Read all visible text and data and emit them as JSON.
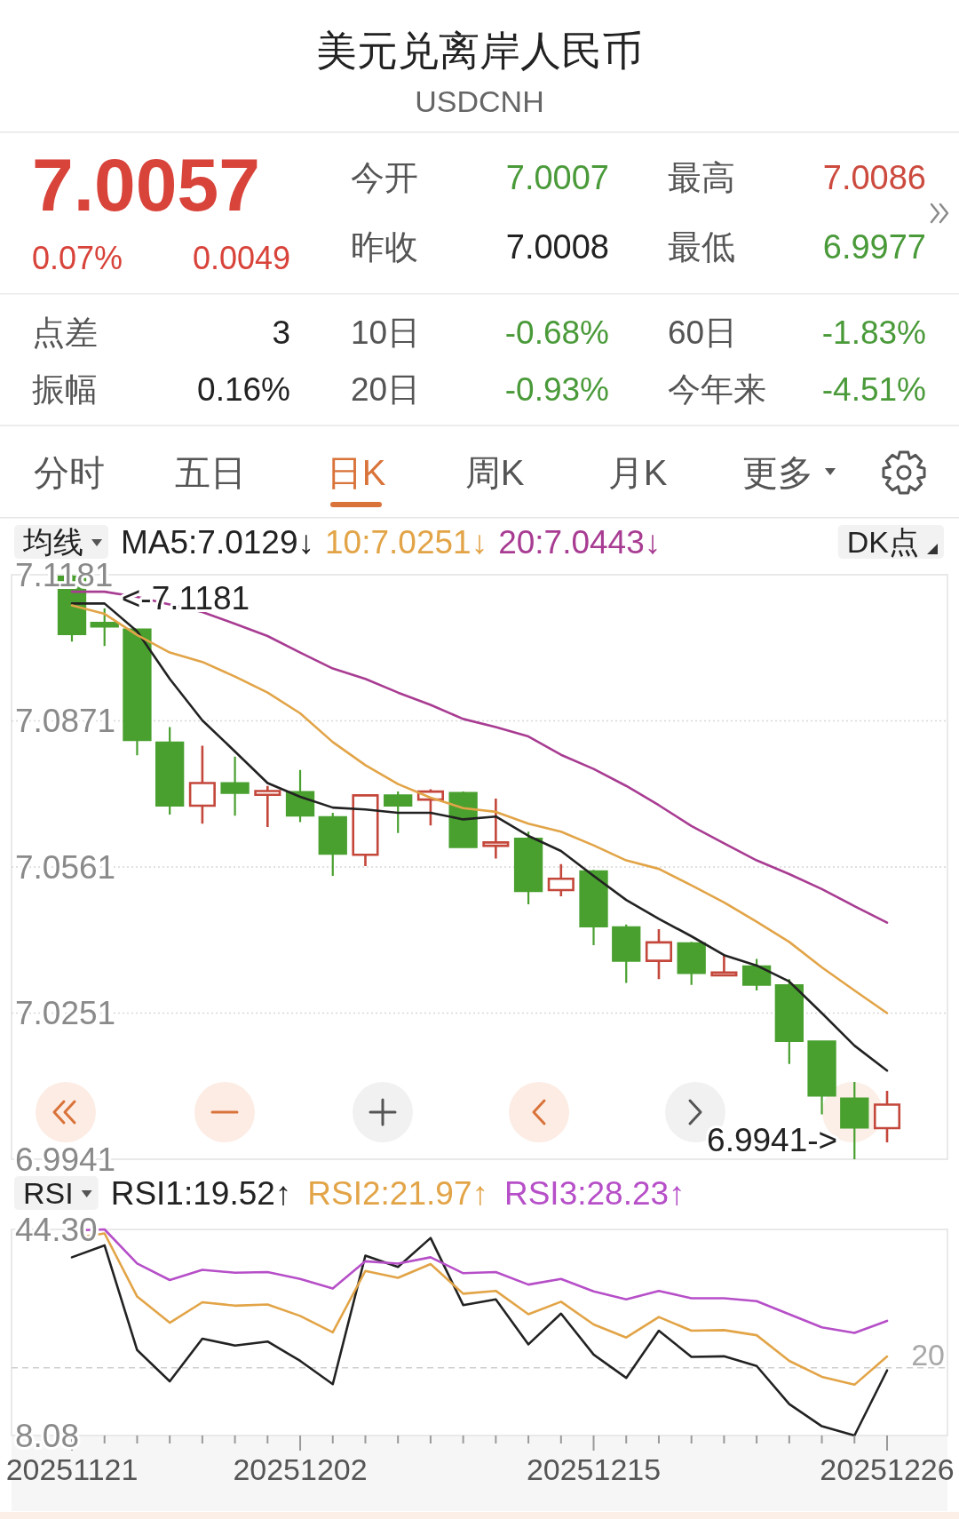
{
  "chart_data": [
    {
      "type": "other",
      "title": "美元兑离岸人民币",
      "subtitle": "USDCNH",
      "annotations": [
        "7.0057",
        "0.07%",
        "0.0049",
        "今开",
        "7.0007",
        "最高",
        "7.0086",
        "昨收",
        "7.0008",
        "最低",
        "6.9977",
        "点差",
        "3",
        "10日",
        "-0.68%",
        "60日",
        "-1.83%",
        "振幅",
        "0.16%",
        "20日",
        "-0.93%",
        "今年来",
        "-4.51%",
        "分时",
        "五日",
        "日K",
        "周K",
        "月K",
        "更多"
      ],
      "colors": [
        "#d8433a",
        "#d8433a",
        "#d8433a",
        "#555555",
        "#4a9a3a",
        "#555555",
        "#cc4a3e",
        "#555555",
        "#222222",
        "#555555",
        "#4a9a3a",
        "#555555",
        "#222222",
        "#555555",
        "#4a9a3a",
        "#555555",
        "#4a9a3a",
        "#555555",
        "#222222",
        "#555555",
        "#4a9a3a",
        "#555555",
        "#4a9a3a",
        "#555555",
        "#555555",
        "#d9733a",
        "#555555",
        "#555555",
        "#555555"
      ]
    },
    {
      "type": "candlestick",
      "categories": [
        "20251121",
        null,
        null,
        null,
        null,
        null,
        null,
        "20251202",
        null,
        null,
        null,
        null,
        null,
        null,
        null,
        null,
        "20251215",
        null,
        null,
        null,
        null,
        null,
        null,
        null,
        null,
        "20251226"
      ],
      "ohlc": [
        [
          7.1177,
          7.1181,
          7.1039,
          7.1055
        ],
        [
          7.1079,
          7.111,
          7.103,
          7.1071
        ],
        [
          7.1065,
          7.1066,
          7.0798,
          7.083
        ],
        [
          7.0825,
          7.0858,
          7.0672,
          7.0691
        ],
        [
          7.0691,
          7.0818,
          7.0653,
          7.0739
        ],
        [
          7.0739,
          7.0795,
          7.067,
          7.0718
        ],
        [
          7.0714,
          7.0733,
          7.0646,
          7.0722
        ],
        [
          7.072,
          7.0767,
          7.0656,
          7.067
        ],
        [
          7.0667,
          7.0676,
          7.0542,
          7.0589
        ],
        [
          7.0587,
          7.0713,
          7.0563,
          7.0713
        ],
        [
          7.0713,
          7.0721,
          7.0633,
          7.0691
        ],
        [
          7.0704,
          7.0726,
          7.0649,
          7.0721
        ],
        [
          7.0718,
          7.0721,
          7.0601,
          7.0603
        ],
        [
          7.0606,
          7.0706,
          7.0579,
          7.0613
        ],
        [
          7.0621,
          7.0636,
          7.0482,
          7.051
        ],
        [
          7.0512,
          7.0567,
          7.0499,
          7.0536
        ],
        [
          7.0552,
          7.0555,
          7.0395,
          7.0435
        ],
        [
          7.0433,
          7.0439,
          7.0315,
          7.0362
        ],
        [
          7.0362,
          7.0429,
          7.0323,
          7.0401
        ],
        [
          7.0399,
          7.0402,
          7.0311,
          7.0336
        ],
        [
          7.0331,
          7.0374,
          7.0329,
          7.0337
        ],
        [
          7.035,
          7.0366,
          7.0299,
          7.0311
        ],
        [
          7.031,
          7.0323,
          7.0143,
          7.0192
        ],
        [
          7.0191,
          7.0191,
          7.0036,
          7.0076
        ],
        [
          7.007,
          7.0105,
          6.9941,
          7.0008
        ],
        [
          7.0007,
          7.0086,
          6.9977,
          7.0057
        ]
      ],
      "colors": [
        "#49a02f",
        "#49a02f",
        "#49a02f",
        "#49a02f",
        "#c4473b",
        "#49a02f",
        "#c4473b",
        "#49a02f",
        "#49a02f",
        "#c4473b",
        "#49a02f",
        "#c4473b",
        "#49a02f",
        "#c4473b",
        "#49a02f",
        "#c4473b",
        "#49a02f",
        "#49a02f",
        "#c4473b",
        "#49a02f",
        "#c4473b",
        "#49a02f",
        "#49a02f",
        "#49a02f",
        "#49a02f",
        "#c4473b"
      ],
      "series": [
        {
          "name": "MA5:7.0129↓",
          "type": "line",
          "color": "#222222",
          "values": [
            7.112,
            7.112,
            7.1061,
            7.096,
            7.0872,
            7.0806,
            7.0739,
            7.071,
            7.0687,
            7.0683,
            7.0676,
            7.0676,
            7.0662,
            7.0668,
            7.0627,
            7.0595,
            7.0542,
            7.0491,
            7.0451,
            7.0414,
            7.0374,
            7.0352,
            7.0318,
            7.0251,
            7.0182,
            7.0129
          ]
        },
        {
          "name": "10:7.0251↓",
          "type": "line",
          "color": "#e2a447",
          "values": [
            7.1116,
            7.1098,
            7.1053,
            7.1016,
            7.0996,
            7.0965,
            7.0931,
            7.0887,
            7.0826,
            7.0777,
            7.0737,
            7.0708,
            7.0686,
            7.0678,
            7.0653,
            7.0636,
            7.0607,
            7.0575,
            7.0557,
            7.0522,
            7.0486,
            7.0445,
            7.0402,
            7.0348,
            7.0299,
            7.0251
          ]
        },
        {
          "name": "20:7.0443↓",
          "type": "line",
          "color": "#a83c92",
          "values": [
            7.1145,
            7.1145,
            7.1134,
            7.1118,
            7.1102,
            7.1077,
            7.1051,
            7.1016,
            7.0982,
            7.096,
            7.0931,
            7.0905,
            7.0875,
            7.0858,
            7.0838,
            7.0799,
            7.0769,
            7.0733,
            7.0692,
            7.0648,
            7.0611,
            7.0575,
            7.0546,
            7.0514,
            7.0478,
            7.0443
          ]
        }
      ],
      "ylim": [
        6.9941,
        7.1181
      ],
      "yticks": [
        7.1181,
        7.0871,
        7.0561,
        7.0251,
        6.9941
      ],
      "grid": "y",
      "legend": "top",
      "tick_labels": "y",
      "annotations": [
        "均线",
        "DK点",
        {
          "text": "<-7.1181",
          "x": "20251121",
          "y": 7.1181
        },
        "6.9941->"
      ]
    },
    {
      "type": "line",
      "categories": [
        "20251121",
        null,
        null,
        null,
        null,
        null,
        null,
        "20251202",
        null,
        null,
        null,
        null,
        null,
        null,
        null,
        null,
        "20251215",
        null,
        null,
        null,
        null,
        null,
        null,
        null,
        null,
        "20251226"
      ],
      "series": [
        {
          "name": "RSI1:19.52↑",
          "color": "#222222",
          "values": [
            39.4,
            41.5,
            23.1,
            17.6,
            25.1,
            23.9,
            24.6,
            21.2,
            17.1,
            39.7,
            37.7,
            42.8,
            31.0,
            32.0,
            24.1,
            29.5,
            22.3,
            18.2,
            26.5,
            21.9,
            22.0,
            20.3,
            13.6,
            9.7,
            8.08,
            19.52
          ]
        },
        {
          "name": "RSI2:21.97↑",
          "color": "#e2a447",
          "values": [
            42.7,
            43.6,
            32.5,
            27.9,
            31.5,
            30.9,
            31.1,
            29.1,
            26.2,
            37.0,
            35.8,
            38.2,
            33.0,
            33.5,
            29.4,
            31.6,
            27.6,
            25.3,
            28.9,
            26.5,
            26.6,
            25.7,
            21.2,
            18.4,
            17.0,
            21.97
          ]
        },
        {
          "name": "RSI3:28.23↑",
          "color": "#b64fc8",
          "values": [
            44.1,
            44.3,
            38.3,
            35.4,
            37.2,
            36.7,
            36.8,
            35.6,
            33.9,
            38.7,
            38.3,
            39.4,
            36.6,
            36.8,
            34.6,
            35.6,
            33.4,
            32.0,
            33.5,
            32.2,
            32.2,
            31.7,
            29.4,
            27.1,
            26.1,
            28.23
          ]
        }
      ],
      "ylim": [
        8.08,
        44.3
      ],
      "yticks": [
        {
          "value": 44.3,
          "label": "44.30"
        },
        8.08
      ],
      "ref_lines": [
        {
          "axis": "y",
          "value": 20,
          "label": "20",
          "line_style": "dashed",
          "color": "#cfcfcf"
        }
      ],
      "legend": "top",
      "annotations": [
        "RSI"
      ]
    }
  ]
}
